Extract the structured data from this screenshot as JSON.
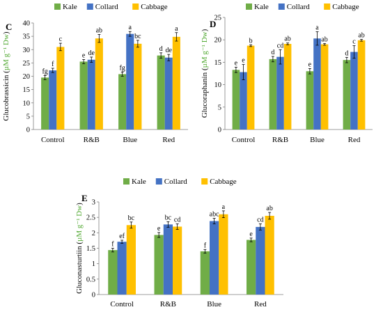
{
  "figure": {
    "colors": {
      "Kale": "#70ad47",
      "Collard": "#4472c4",
      "Cabbage": "#ffc000",
      "axis": "#7f7f7f",
      "error": "#000000"
    }
  },
  "chart_data": [
    {
      "type": "bar",
      "panel": "C",
      "ylabel_prefix": "Glucobrassicin (",
      "ylabel_unit": "µM g⁻¹ Dw",
      "ylabel_suffix": ")",
      "ylim": [
        0,
        40
      ],
      "yticks": [
        "0",
        "5",
        "10",
        "15",
        "20",
        "25",
        "30",
        "35",
        "40"
      ],
      "legend": "top-center",
      "categories": [
        "Control",
        "R&B",
        "Blue",
        "Red"
      ],
      "series": [
        {
          "name": "Kale",
          "values": [
            19.5,
            25.5,
            20.8,
            27.8
          ],
          "errors": [
            0.8,
            0.8,
            0.8,
            1.0
          ],
          "letters": [
            "fg",
            "e",
            "fg",
            "d"
          ]
        },
        {
          "name": "Collard",
          "values": [
            22.2,
            26.2,
            35.9,
            27.0
          ],
          "errors": [
            0.8,
            1.0,
            0.9,
            1.2
          ],
          "letters": [
            "f",
            "de",
            "a",
            "de"
          ]
        },
        {
          "name": "Cabbage",
          "values": [
            31.0,
            34.2,
            32.2,
            34.8
          ],
          "errors": [
            1.4,
            1.5,
            1.3,
            1.6
          ],
          "letters": [
            "c",
            "ab",
            "bc",
            "a"
          ]
        }
      ]
    },
    {
      "type": "bar",
      "panel": "D",
      "ylabel_prefix": "Glucoraphanin (",
      "ylabel_unit": "µM g⁻¹ Dw",
      "ylabel_suffix": ")",
      "ylim": [
        0,
        25
      ],
      "yticks": [
        "0",
        "5",
        "10",
        "15",
        "20",
        "25"
      ],
      "legend": "top-center",
      "categories": [
        "Control",
        "R&B",
        "Blue",
        "Red"
      ],
      "series": [
        {
          "name": "Kale",
          "values": [
            13.3,
            15.7,
            13.0,
            15.5
          ],
          "errors": [
            0.6,
            0.6,
            0.6,
            0.6
          ],
          "letters": [
            "e",
            "d",
            "e",
            "d"
          ]
        },
        {
          "name": "Collard",
          "values": [
            12.8,
            16.2,
            20.3,
            17.3
          ],
          "errors": [
            1.7,
            1.6,
            1.5,
            1.4
          ],
          "letters": [
            "e",
            "cd",
            "a",
            "c"
          ]
        },
        {
          "name": "Cabbage",
          "values": [
            18.7,
            19.1,
            19.0,
            19.9
          ],
          "errors": [
            0.2,
            0.2,
            0.2,
            0.2
          ],
          "letters": [
            "b",
            "ab",
            "ab",
            "ab"
          ]
        }
      ]
    },
    {
      "type": "bar",
      "panel": "E",
      "ylabel_prefix": "Gluconasturtiin (",
      "ylabel_unit": "µM g⁻¹ Dw",
      "ylabel_suffix": ")",
      "ylim": [
        0,
        3
      ],
      "yticks": [
        "0",
        "0.5",
        "1",
        "1.5",
        "2",
        "2.5",
        "3"
      ],
      "legend": "top-center",
      "categories": [
        "Control",
        "R&B",
        "Blue",
        "Red"
      ],
      "series": [
        {
          "name": "Kale",
          "values": [
            1.44,
            1.93,
            1.4,
            1.77
          ],
          "errors": [
            0.06,
            0.08,
            0.06,
            0.06
          ],
          "letters": [
            "f",
            "e",
            "f",
            "e"
          ]
        },
        {
          "name": "Collard",
          "values": [
            1.71,
            2.27,
            2.38,
            2.19
          ],
          "errors": [
            0.05,
            0.09,
            0.09,
            0.1
          ],
          "letters": [
            "ef",
            "bc",
            "abc",
            "cd"
          ]
        },
        {
          "name": "Cabbage",
          "values": [
            2.25,
            2.2,
            2.6,
            2.55
          ],
          "errors": [
            0.1,
            0.09,
            0.11,
            0.11
          ],
          "letters": [
            "bc",
            "cd",
            "a",
            "ab"
          ]
        }
      ]
    }
  ]
}
